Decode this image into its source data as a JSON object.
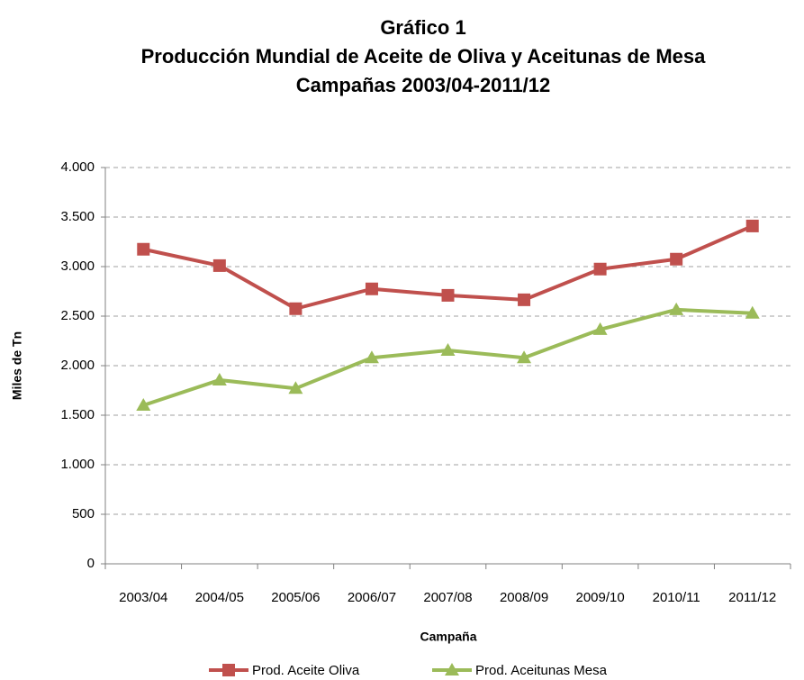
{
  "chart_data": {
    "type": "line",
    "title": [
      "Gráfico 1",
      "Producción Mundial de Aceite de Oliva y Aceitunas de Mesa",
      "Campañas 2003/04-2011/12"
    ],
    "x_label": "Campaña",
    "y_label": "Miles de Tn",
    "categories": [
      "2003/04",
      "2004/05",
      "2005/06",
      "2006/07",
      "2007/08",
      "2008/09",
      "2009/10",
      "2010/11",
      "2011/12"
    ],
    "series": [
      {
        "name": "Prod. Aceite Oliva",
        "color": "#c0504d",
        "marker": "square",
        "values": [
          3175,
          3010,
          2575,
          2775,
          2710,
          2665,
          2975,
          3075,
          3410
        ]
      },
      {
        "name": "Prod. Aceitunas Mesa",
        "color": "#9bbb59",
        "marker": "triangle",
        "values": [
          1600,
          1855,
          1770,
          2080,
          2155,
          2080,
          2365,
          2565,
          2530
        ]
      }
    ],
    "ylim": [
      0,
      4000
    ],
    "yticks": [
      0,
      500,
      {
        "value": 1000,
        "label": "1.000"
      },
      {
        "value": 1500,
        "label": "1.500"
      },
      {
        "value": 2000,
        "label": "2.000"
      },
      {
        "value": 2500,
        "label": "2.500"
      },
      {
        "value": 3000,
        "label": "3.000"
      },
      {
        "value": 3500,
        "label": "3.500"
      },
      {
        "value": 4000,
        "label": "4.000"
      }
    ],
    "grid": true,
    "legend": "bottom"
  }
}
